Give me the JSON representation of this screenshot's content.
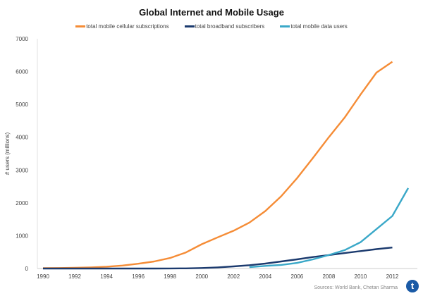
{
  "chart_data": {
    "type": "line",
    "title": "Global Internet and Mobile Usage",
    "xlabel": "",
    "ylabel": "# users (millions)",
    "xlim": [
      1990,
      2013
    ],
    "ylim": [
      0,
      7000
    ],
    "x_ticks": [
      "1990",
      "1992",
      "1994",
      "1996",
      "1998",
      "2000",
      "2002",
      "2004",
      "2006",
      "2008",
      "2010",
      "2012"
    ],
    "y_ticks": [
      "0",
      "1000",
      "2000",
      "3000",
      "4000",
      "5000",
      "6000",
      "7000"
    ],
    "grid": false,
    "legend_position": "top",
    "series": [
      {
        "name": "total mobile cellular subscriptions",
        "color": "#f58c36",
        "x": [
          1990,
          1991,
          1992,
          1993,
          1994,
          1995,
          1996,
          1997,
          1998,
          1999,
          2000,
          2001,
          2002,
          2003,
          2004,
          2005,
          2006,
          2007,
          2008,
          2009,
          2010,
          2011,
          2012
        ],
        "y": [
          11,
          16,
          23,
          34,
          56,
          90,
          145,
          215,
          320,
          490,
          740,
          950,
          1150,
          1400,
          1750,
          2200,
          2750,
          3370,
          4000,
          4600,
          5300,
          5970,
          6300
        ]
      },
      {
        "name": "total broadband subscribers",
        "color": "#1b3a6e",
        "x": [
          1990,
          1991,
          1992,
          1993,
          1994,
          1995,
          1996,
          1997,
          1998,
          1999,
          2000,
          2001,
          2002,
          2003,
          2004,
          2005,
          2006,
          2007,
          2008,
          2009,
          2010,
          2011,
          2012
        ],
        "y": [
          0,
          0,
          0,
          0,
          0,
          0,
          0,
          1,
          2,
          5,
          15,
          35,
          65,
          100,
          150,
          215,
          280,
          350,
          410,
          470,
          530,
          590,
          640
        ]
      },
      {
        "name": "total mobile data users",
        "color": "#3aa8c8",
        "x": [
          2003,
          2004,
          2005,
          2006,
          2007,
          2008,
          2009,
          2010,
          2011,
          2012,
          2013
        ],
        "y": [
          40,
          80,
          110,
          170,
          280,
          410,
          560,
          800,
          1200,
          1600,
          2450
        ]
      }
    ],
    "source": "Sources: World Bank, Chetan Sharma"
  },
  "logo": "t"
}
